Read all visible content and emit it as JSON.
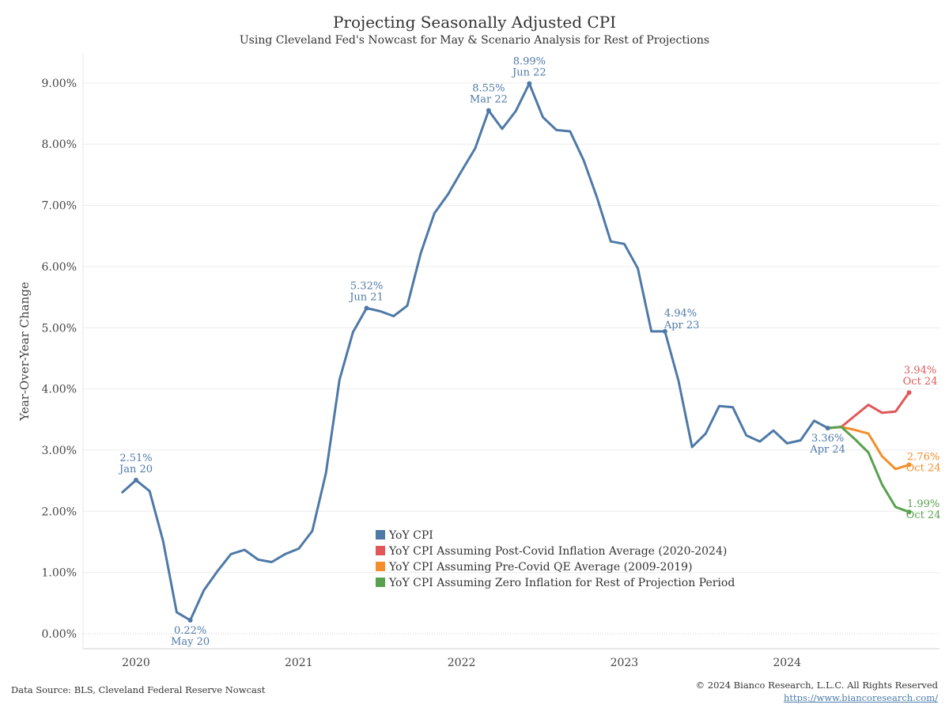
{
  "title": "Projecting Seasonally Adjusted CPI",
  "subtitle": "Using Cleveland Fed's Nowcast for May & Scenario Analysis for Rest of Projections",
  "footer": {
    "source": "Data Source: BLS, Cleveland Federal Reserve Nowcast",
    "copyright": "© 2024 Bianco Research, L.L.C. All Rights Reserved",
    "url": "https://www.biancoresearch.com/"
  },
  "chart_data": {
    "type": "line",
    "ylabel": "Year-Over-Year Change",
    "xlabel": "",
    "ylim": [
      -0.2,
      9.5
    ],
    "x_ticks": [
      "2020",
      "2021",
      "2022",
      "2023",
      "2024"
    ],
    "y_ticks": [
      "0.00%",
      "1.00%",
      "2.00%",
      "3.00%",
      "4.00%",
      "5.00%",
      "6.00%",
      "7.00%",
      "8.00%",
      "9.00%"
    ],
    "grid": true,
    "legend_position": "bottom-center",
    "series": [
      {
        "name": "YoY CPI",
        "color": "#4e79a7",
        "x": [
          "2019-12",
          "2020-01",
          "2020-02",
          "2020-03",
          "2020-04",
          "2020-05",
          "2020-06",
          "2020-07",
          "2020-08",
          "2020-09",
          "2020-10",
          "2020-11",
          "2020-12",
          "2021-01",
          "2021-02",
          "2021-03",
          "2021-04",
          "2021-05",
          "2021-06",
          "2021-07",
          "2021-08",
          "2021-09",
          "2021-10",
          "2021-11",
          "2021-12",
          "2022-01",
          "2022-02",
          "2022-03",
          "2022-04",
          "2022-05",
          "2022-06",
          "2022-07",
          "2022-08",
          "2022-09",
          "2022-10",
          "2022-11",
          "2022-12",
          "2023-01",
          "2023-02",
          "2023-03",
          "2023-04",
          "2023-05",
          "2023-06",
          "2023-07",
          "2023-08",
          "2023-09",
          "2023-10",
          "2023-11",
          "2023-12",
          "2024-01",
          "2024-02",
          "2024-03",
          "2024-04",
          "2024-05"
        ],
        "values": [
          2.31,
          2.51,
          2.33,
          1.51,
          0.35,
          0.22,
          0.71,
          1.02,
          1.3,
          1.37,
          1.21,
          1.17,
          1.3,
          1.39,
          1.68,
          2.62,
          4.15,
          4.93,
          5.32,
          5.27,
          5.19,
          5.36,
          6.22,
          6.87,
          7.18,
          7.56,
          7.93,
          8.55,
          8.25,
          8.54,
          8.99,
          8.44,
          8.23,
          8.21,
          7.74,
          7.12,
          6.41,
          6.37,
          5.97,
          4.94,
          4.94,
          4.13,
          3.05,
          3.27,
          3.72,
          3.7,
          3.24,
          3.14,
          3.32,
          3.11,
          3.16,
          3.48,
          3.36,
          3.38
        ]
      },
      {
        "name": "YoY CPI Assuming Post-Covid Inflation Average (2020-2024)",
        "color": "#e15759",
        "x": [
          "2024-04",
          "2024-05",
          "2024-06",
          "2024-07",
          "2024-08",
          "2024-09",
          "2024-10"
        ],
        "values": [
          3.36,
          3.38,
          3.56,
          3.74,
          3.61,
          3.63,
          3.94
        ]
      },
      {
        "name": "YoY CPI Assuming Pre-Covid QE Average (2009-2019)",
        "color": "#f28e2b",
        "x": [
          "2024-04",
          "2024-05",
          "2024-06",
          "2024-07",
          "2024-08",
          "2024-09",
          "2024-10"
        ],
        "values": [
          3.36,
          3.38,
          3.33,
          3.27,
          2.9,
          2.69,
          2.76
        ]
      },
      {
        "name": "YoY CPI Assuming Zero Inflation for Rest of Projection Period",
        "color": "#59a14f",
        "x": [
          "2024-04",
          "2024-05",
          "2024-06",
          "2024-07",
          "2024-08",
          "2024-09",
          "2024-10"
        ],
        "values": [
          3.36,
          3.38,
          3.18,
          2.96,
          2.44,
          2.07,
          1.99
        ]
      }
    ],
    "annotations": [
      {
        "x": "2020-01",
        "value_text": "2.51%",
        "date_text": "Jan 20",
        "series": 0,
        "pos": "above"
      },
      {
        "x": "2020-05",
        "value_text": "0.22%",
        "date_text": "May 20",
        "series": 0,
        "pos": "below"
      },
      {
        "x": "2021-06",
        "value_text": "5.32%",
        "date_text": "Jun 21",
        "series": 0,
        "pos": "above"
      },
      {
        "x": "2022-03",
        "value_text": "8.55%",
        "date_text": "Mar 22",
        "series": 0,
        "pos": "above"
      },
      {
        "x": "2022-06",
        "value_text": "8.99%",
        "date_text": "Jun 22",
        "series": 0,
        "pos": "above"
      },
      {
        "x": "2023-04",
        "value_text": "4.94%",
        "date_text": "Apr 23",
        "series": 0,
        "pos": "right"
      },
      {
        "x": "2024-04",
        "value_text": "3.36%",
        "date_text": "Apr 24",
        "series": 0,
        "pos": "below"
      },
      {
        "x": "2024-10",
        "value_text": "3.94%",
        "date_text": "Oct 24",
        "series": 1,
        "pos": "above"
      },
      {
        "x": "2024-10",
        "value_text": "2.76%",
        "date_text": "Oct 24",
        "series": 2,
        "pos": "right"
      },
      {
        "x": "2024-10",
        "value_text": "1.99%",
        "date_text": "Oct 24",
        "series": 3,
        "pos": "right"
      }
    ]
  }
}
